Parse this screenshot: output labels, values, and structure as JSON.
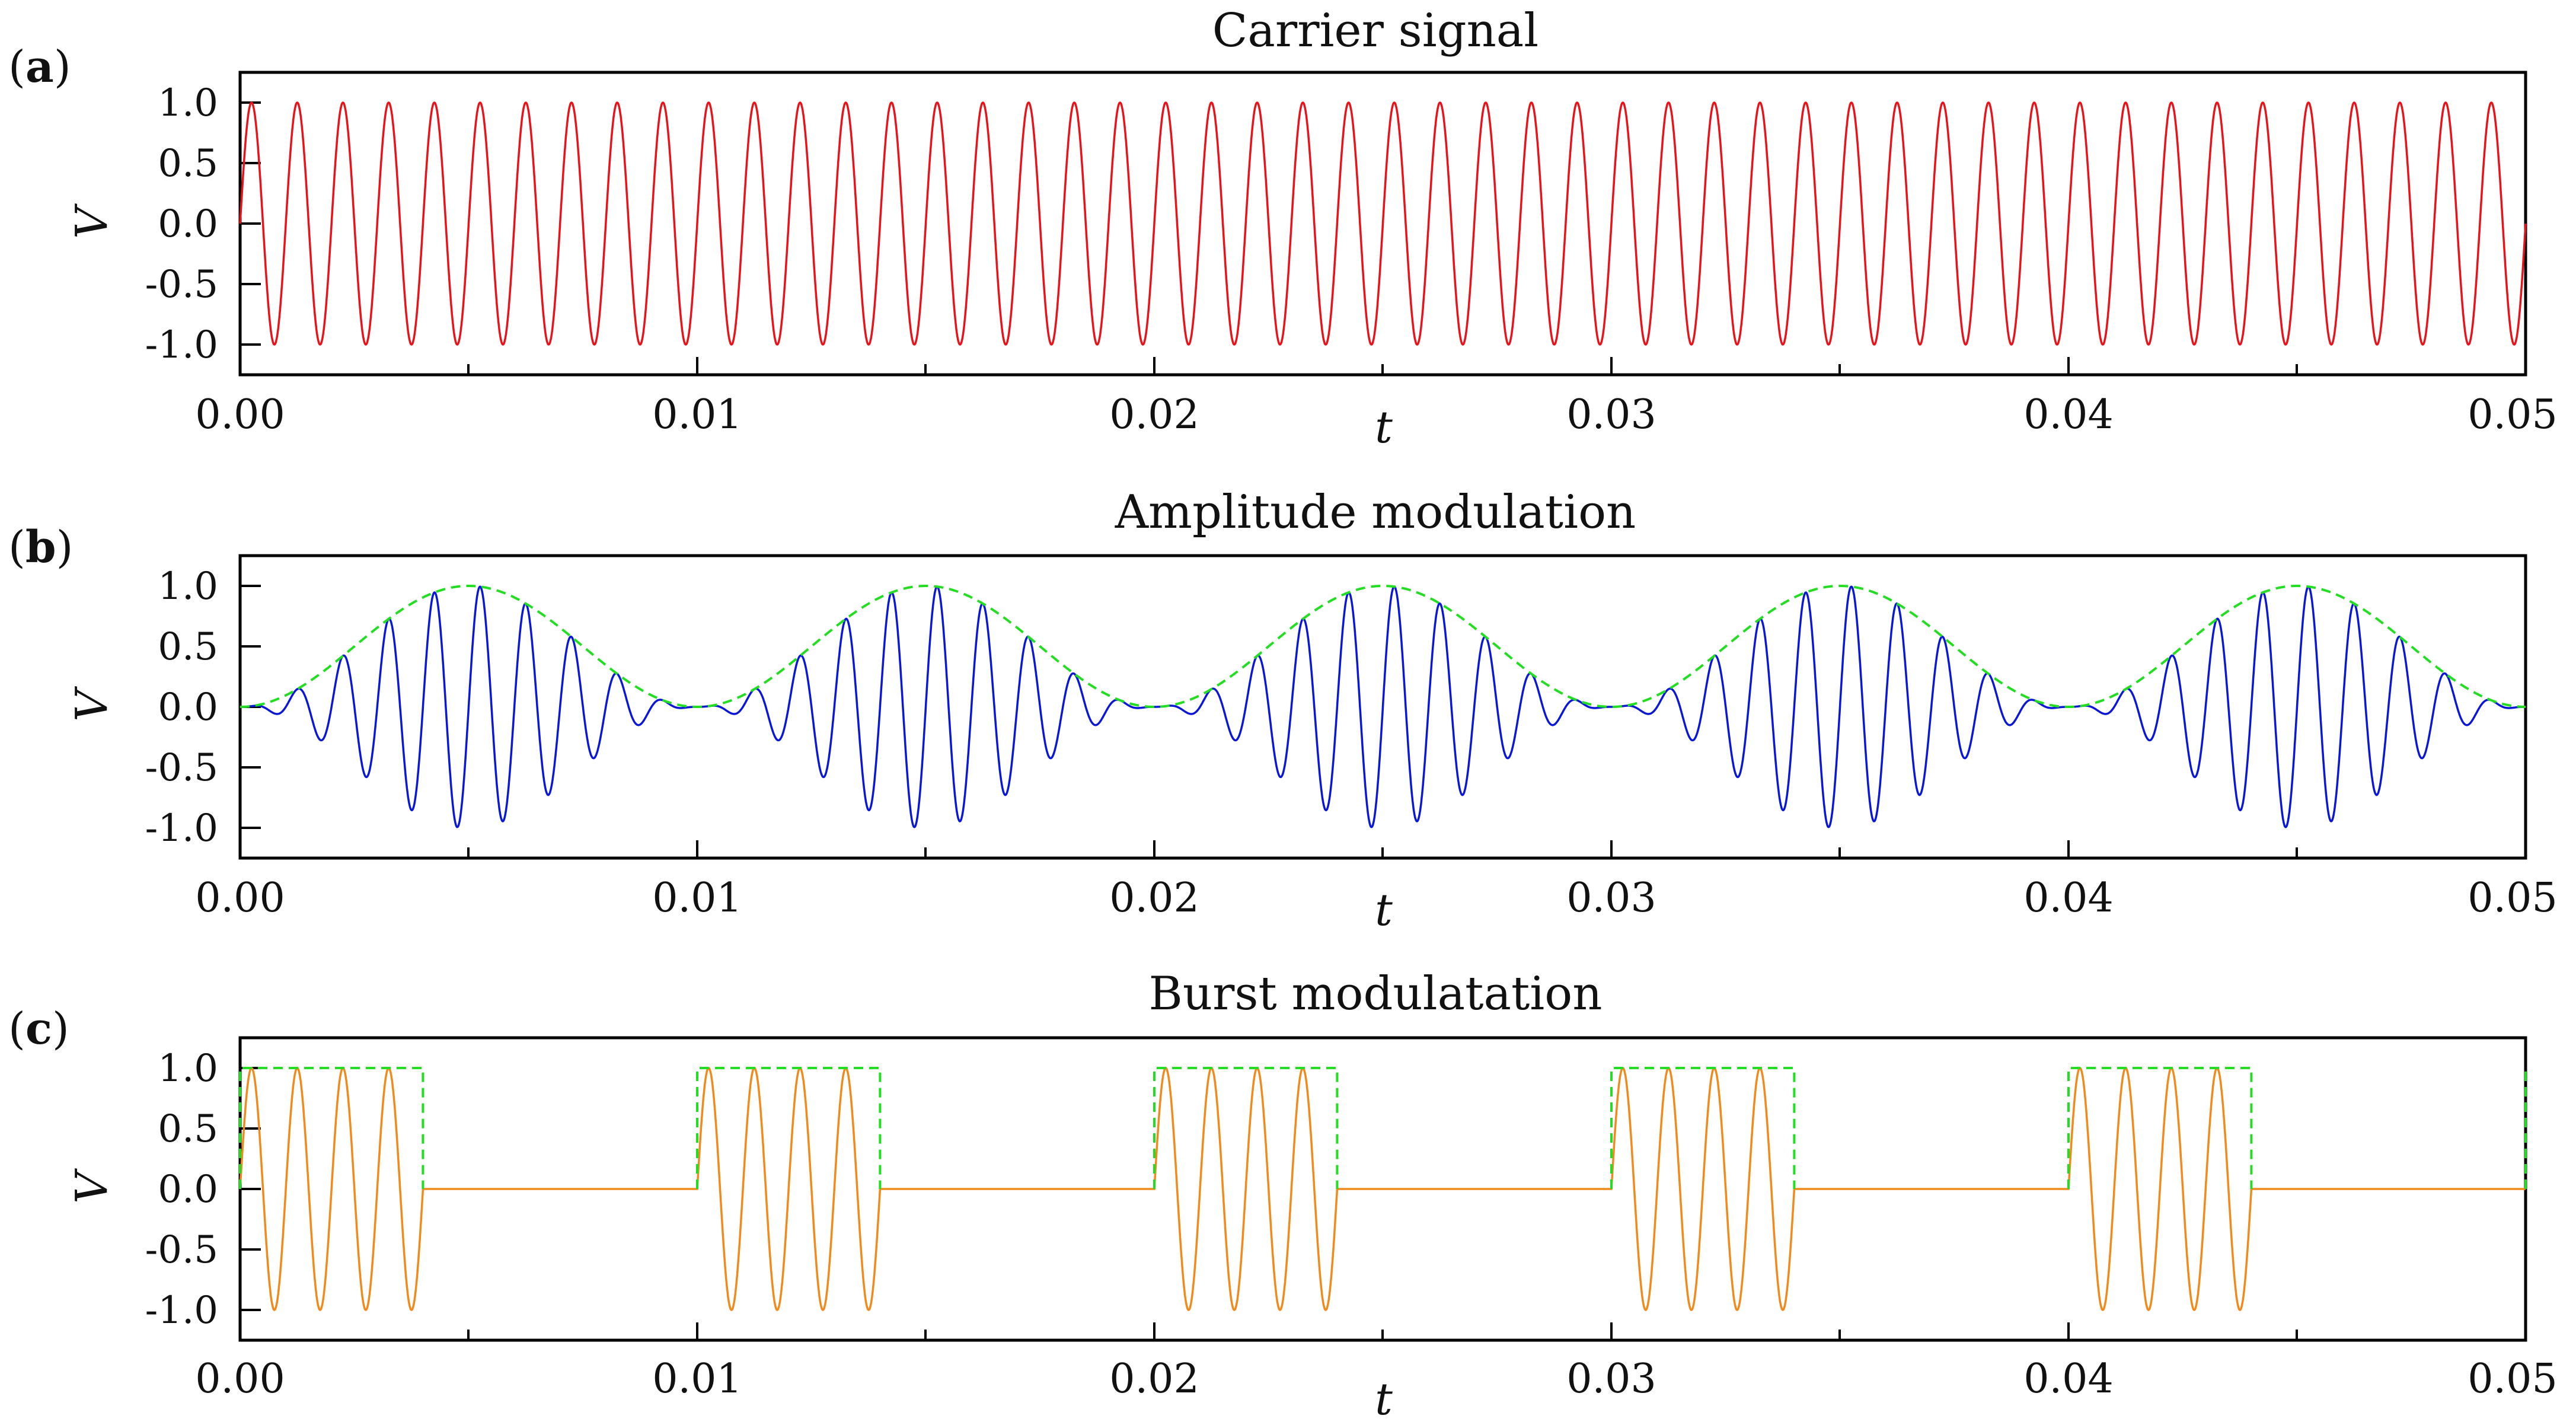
{
  "chart_data": [
    {
      "type": "line",
      "panel_label": "a",
      "title": "Carrier signal",
      "xlabel": "t",
      "ylabel": "V",
      "xlim": [
        0,
        0.05
      ],
      "ylim": [
        -1.25,
        1.25
      ],
      "x_ticks": [
        "0.00",
        "0.01",
        "0.02",
        "0.03",
        "0.04",
        "0.05"
      ],
      "y_ticks": [
        "1.0",
        "0.5",
        "0.0",
        "-0.5",
        "-1.0"
      ],
      "grid": false,
      "series": [
        {
          "kind": "carrier",
          "function": "sin(2*pi*f*t)",
          "frequency_hz": 1000,
          "amplitude": 1.0,
          "color": "#e8131a",
          "style": "solid"
        }
      ]
    },
    {
      "type": "line",
      "panel_label": "b",
      "title": "Amplitude modulation",
      "xlabel": "t",
      "ylabel": "V",
      "xlim": [
        0,
        0.05
      ],
      "ylim": [
        -1.25,
        1.25
      ],
      "x_ticks": [
        "0.00",
        "0.01",
        "0.02",
        "0.03",
        "0.04",
        "0.05"
      ],
      "y_ticks": [
        "1.0",
        "0.5",
        "0.0",
        "-0.5",
        "-1.0"
      ],
      "grid": false,
      "series": [
        {
          "kind": "am_signal",
          "function": "0.5*(1-cos(2*pi*fm*t))*sin(2*pi*fc*t)",
          "carrier_hz": 1000,
          "modulation_hz": 100,
          "color": "#0a17d6",
          "style": "solid"
        },
        {
          "kind": "envelope",
          "function": "0.5*(1-cos(2*pi*fm*t))",
          "modulation_hz": 100,
          "color": "#22dd22",
          "style": "dashed"
        }
      ]
    },
    {
      "type": "line",
      "panel_label": "c",
      "title": "Burst modulatation",
      "xlabel": "t",
      "ylabel": "V",
      "xlim": [
        0,
        0.05
      ],
      "ylim": [
        -1.25,
        1.25
      ],
      "x_ticks": [
        "0.00",
        "0.01",
        "0.02",
        "0.03",
        "0.04",
        "0.05"
      ],
      "y_ticks": [
        "1.0",
        "0.5",
        "0.0",
        "-0.5",
        "-1.0"
      ],
      "grid": false,
      "series": [
        {
          "kind": "burst_signal",
          "function": "gate(t)*sin(2*pi*fc*t)",
          "carrier_hz": 1000,
          "burst_period": 0.01,
          "burst_on": 0.004,
          "color": "#f08a1c",
          "style": "solid"
        },
        {
          "kind": "gate",
          "function": "1 if (t mod period) < on else 0",
          "burst_period": 0.01,
          "burst_on": 0.004,
          "color": "#22dd22",
          "style": "dashed"
        }
      ]
    }
  ]
}
